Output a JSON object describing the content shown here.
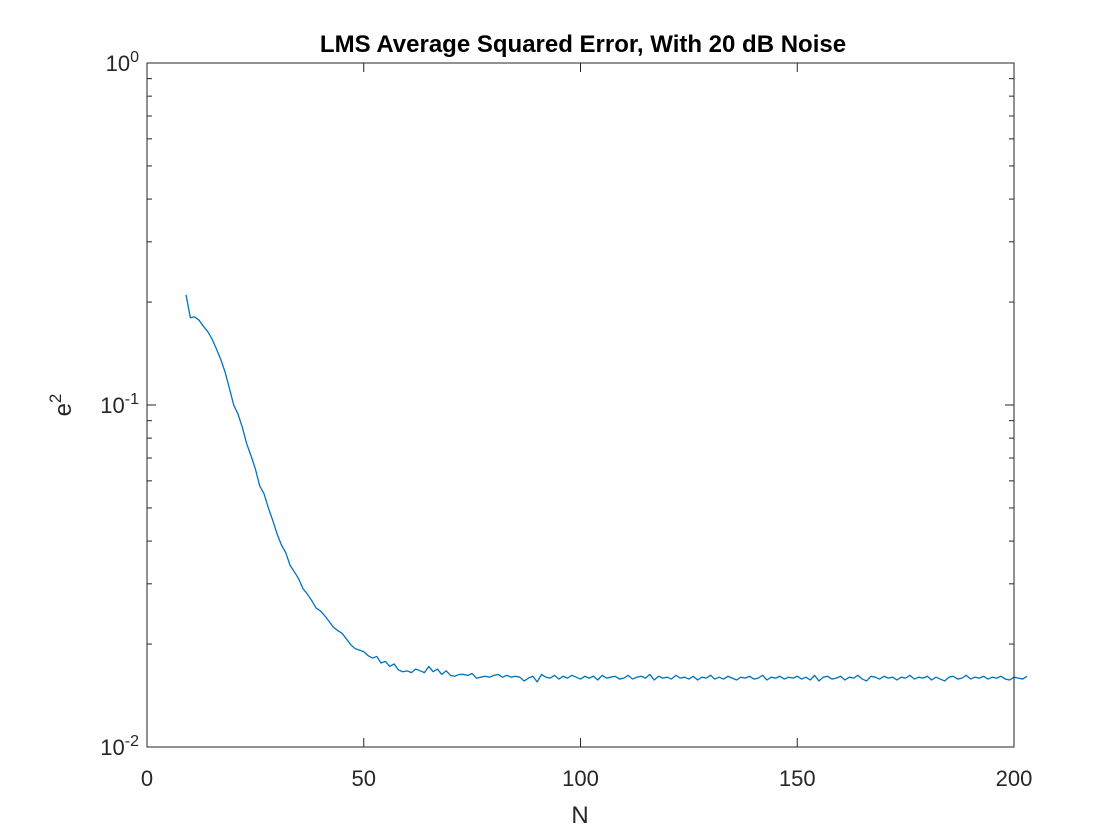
{
  "chart_data": {
    "type": "line",
    "title": "LMS Average Squared Error, With 20 dB Noise",
    "xlabel": "N",
    "ylabel": {
      "base": "e",
      "sup": "2"
    },
    "xlim": [
      0,
      200
    ],
    "ylim": [
      0.01,
      1
    ],
    "yscale": "log",
    "grid": false,
    "x_ticks": [
      {
        "value": 0,
        "label": "0"
      },
      {
        "value": 50,
        "label": "50"
      },
      {
        "value": 100,
        "label": "100"
      },
      {
        "value": 150,
        "label": "150"
      },
      {
        "value": 200,
        "label": "200"
      }
    ],
    "y_ticks": [
      {
        "value": 0.01,
        "base": "10",
        "exp": "-2"
      },
      {
        "value": 0.1,
        "base": "10",
        "exp": "-1"
      },
      {
        "value": 1,
        "base": "10",
        "exp": "0"
      }
    ],
    "series": [
      {
        "color": "#0072BD",
        "x_start": 9,
        "x_step": 1,
        "y": [
          0.21,
          0.18,
          0.181,
          0.177,
          0.17,
          0.164,
          0.156,
          0.146,
          0.136,
          0.125,
          0.112,
          0.1,
          0.094,
          0.086,
          0.077,
          0.071,
          0.065,
          0.058,
          0.055,
          0.05,
          0.046,
          0.042,
          0.039,
          0.037,
          0.034,
          0.0325,
          0.031,
          0.029,
          0.028,
          0.0268,
          0.0255,
          0.025,
          0.0242,
          0.0233,
          0.0224,
          0.0219,
          0.0215,
          0.0207,
          0.0199,
          0.0194,
          0.0192,
          0.019,
          0.0185,
          0.0182,
          0.0184,
          0.0176,
          0.0178,
          0.0172,
          0.0175,
          0.0168,
          0.0166,
          0.0167,
          0.0165,
          0.0169,
          0.0167,
          0.0165,
          0.0172,
          0.0166,
          0.0169,
          0.0163,
          0.0167,
          0.0162,
          0.0161,
          0.0163,
          0.0163,
          0.0162,
          0.0164,
          0.0159,
          0.016,
          0.0161,
          0.016,
          0.0162,
          0.0163,
          0.016,
          0.0162,
          0.016,
          0.0161,
          0.016,
          0.0156,
          0.0159,
          0.0161,
          0.0155,
          0.0163,
          0.016,
          0.0159,
          0.0162,
          0.0158,
          0.0161,
          0.0159,
          0.0162,
          0.016,
          0.0158,
          0.0161,
          0.0159,
          0.0161,
          0.0157,
          0.0162,
          0.0159,
          0.016,
          0.0161,
          0.0158,
          0.0159,
          0.0162,
          0.0158,
          0.016,
          0.0161,
          0.0159,
          0.0163,
          0.0157,
          0.0161,
          0.0159,
          0.016,
          0.0158,
          0.0162,
          0.0159,
          0.016,
          0.0158,
          0.0161,
          0.0157,
          0.016,
          0.0159,
          0.0162,
          0.0158,
          0.016,
          0.0158,
          0.0161,
          0.0159,
          0.0157,
          0.016,
          0.0159,
          0.0161,
          0.0158,
          0.0159,
          0.0162,
          0.0157,
          0.016,
          0.0159,
          0.0161,
          0.0158,
          0.016,
          0.0159,
          0.0161,
          0.0158,
          0.016,
          0.0157,
          0.0162,
          0.0156,
          0.016,
          0.0161,
          0.0158,
          0.0159,
          0.0161,
          0.0157,
          0.016,
          0.0159,
          0.0162,
          0.0158,
          0.0156,
          0.0161,
          0.016,
          0.0158,
          0.0161,
          0.0159,
          0.016,
          0.0157,
          0.016,
          0.0159,
          0.0162,
          0.0158,
          0.016,
          0.0159,
          0.0161,
          0.0157,
          0.016,
          0.0158,
          0.0156,
          0.016,
          0.0161,
          0.0158,
          0.0159,
          0.0162,
          0.0158,
          0.016,
          0.0159,
          0.0161,
          0.0158,
          0.016,
          0.0159,
          0.0161,
          0.0158,
          0.0157,
          0.016,
          0.0159,
          0.0158,
          0.0161
        ]
      }
    ]
  }
}
